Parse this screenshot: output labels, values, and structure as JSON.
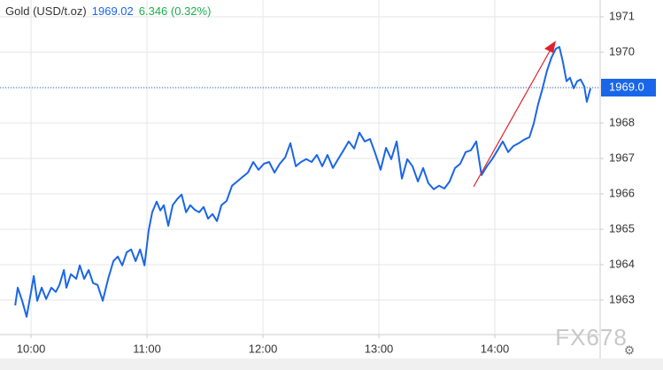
{
  "chart_data": {
    "type": "line",
    "symbol": "Gold (USD/t.oz)",
    "price": "1969.02",
    "change": "6.346 (0.32%)",
    "watermark": "FX678",
    "x": [
      591.8,
      593.1,
      595.4,
      597.7,
      600,
      601.4,
      603.2,
      605.5,
      607.8,
      610.5,
      612.8,
      614.7,
      617,
      618.3,
      620.6,
      623.4,
      625.2,
      627.5,
      629.8,
      632.1,
      634.4,
      637.1,
      639.9,
      642.6,
      644.9,
      647.2,
      649.5,
      651.8,
      654.1,
      656.4,
      658.7,
      660.9,
      662.7,
      665,
      666.9,
      668.7,
      671,
      673.3,
      675.6,
      677.9,
      680.2,
      682.4,
      684.7,
      687,
      689.3,
      691.6,
      693.9,
      696.2,
      698.5,
      701.2,
      704,
      706.7,
      709.5,
      712.2,
      715,
      717.7,
      720.5,
      723.2,
      726,
      728.7,
      731.5,
      734.2,
      737,
      739.7,
      742.4,
      745.2,
      747.9,
      750.7,
      753.4,
      756.2,
      758.9,
      761.7,
      764.4,
      767.2,
      769.9,
      772.7,
      775.4,
      778.2,
      780.9,
      783.7,
      786.4,
      789.2,
      791.9,
      794.7,
      797.4,
      800.2,
      802.9,
      805.6,
      808.4,
      811.1,
      813.9,
      816.6,
      819.4,
      822.1,
      824.9,
      827.6,
      830.4,
      833.1,
      835.9,
      838.6,
      841.4,
      844.1,
      846.9,
      849.6,
      852.4,
      855.1,
      857.9,
      860.1,
      862.4,
      864.7,
      867,
      869.3,
      871.6,
      873.4,
      875.2,
      877.1,
      878.9,
      880.8,
      882.6,
      884.4,
      886.3,
      887.6,
      889.5
    ],
    "series": [
      {
        "name": "Gold",
        "color": "#1a66e8",
        "values": [
          1962.85,
          1963.35,
          1962.98,
          1962.53,
          1963.23,
          1963.68,
          1962.98,
          1963.35,
          1963.03,
          1963.35,
          1963.23,
          1963.43,
          1963.85,
          1963.35,
          1963.73,
          1963.6,
          1963.98,
          1963.6,
          1963.85,
          1963.48,
          1963.43,
          1962.98,
          1963.6,
          1964.1,
          1964.23,
          1963.98,
          1964.35,
          1964.43,
          1964.1,
          1964.43,
          1963.98,
          1964.98,
          1965.48,
          1965.78,
          1965.53,
          1965.68,
          1965.1,
          1965.68,
          1965.85,
          1965.98,
          1965.48,
          1965.68,
          1965.55,
          1965.48,
          1965.63,
          1965.3,
          1965.43,
          1965.23,
          1965.68,
          1965.8,
          1966.23,
          1966.35,
          1966.48,
          1966.6,
          1966.9,
          1966.68,
          1966.85,
          1966.9,
          1966.6,
          1966.85,
          1967.03,
          1967.43,
          1966.78,
          1966.9,
          1966.98,
          1966.9,
          1967.1,
          1966.78,
          1967.1,
          1966.73,
          1966.98,
          1967.23,
          1967.48,
          1967.28,
          1967.73,
          1967.48,
          1967.55,
          1967.13,
          1966.68,
          1967.3,
          1966.98,
          1967.48,
          1966.43,
          1966.98,
          1966.78,
          1966.35,
          1966.73,
          1966.3,
          1966.13,
          1966.23,
          1966.15,
          1966.35,
          1966.73,
          1966.85,
          1967.18,
          1967.23,
          1967.48,
          1966.53,
          1966.78,
          1966.98,
          1967.23,
          1967.48,
          1967.18,
          1967.35,
          1967.43,
          1967.53,
          1967.6,
          1967.98,
          1968.53,
          1968.98,
          1969.48,
          1969.85,
          1970.1,
          1970.15,
          1969.73,
          1969.18,
          1969.28,
          1968.98,
          1969.18,
          1969.23,
          1969.03,
          1968.6,
          1968.98
        ]
      }
    ],
    "xlim": [
      590.8,
      894.5
    ],
    "xticks": [
      {
        "value": 600,
        "label": "10:00"
      },
      {
        "value": 660,
        "label": "11:00"
      },
      {
        "value": 720,
        "label": "12:00"
      },
      {
        "value": 780,
        "label": "13:00"
      },
      {
        "value": 840,
        "label": "14:00"
      }
    ],
    "ylim": [
      1962.025,
      1971.475
    ],
    "yticks": [
      1963,
      1964,
      1965,
      1966,
      1967,
      1968,
      1969,
      1970,
      1971
    ],
    "price_marker": {
      "value": 1969.0,
      "label": "1969.0"
    },
    "grid": true
  }
}
